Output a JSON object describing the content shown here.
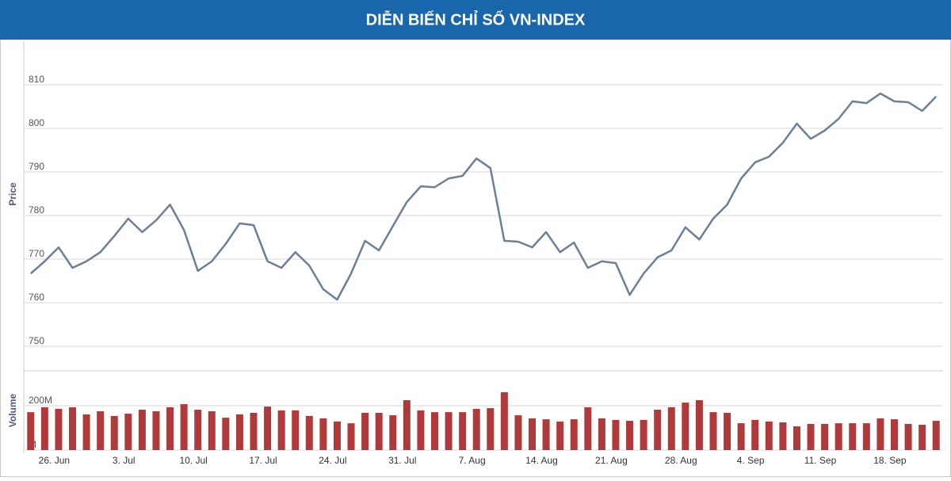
{
  "chart_data": [
    {
      "type": "line",
      "title": "DIỄN BIẾN CHỈ SỐ VN-INDEX",
      "ylabel": "Price",
      "color": "#6b7f99",
      "grid": true,
      "ylim": [
        750,
        820
      ],
      "yticks": [
        750,
        760,
        770,
        780,
        790,
        800,
        810
      ],
      "values": [
        766.7,
        769.5,
        772.7,
        768,
        769.5,
        771.6,
        775.3,
        779.3,
        776.2,
        778.9,
        782.5,
        776.7,
        767.3,
        769.5,
        773.5,
        778.2,
        777.8,
        769.5,
        768,
        771.6,
        768.5,
        763.1,
        760.7,
        766.7,
        774.2,
        772,
        777.6,
        783.1,
        786.7,
        786.5,
        788.5,
        789.1,
        793.1,
        790.9,
        774.2,
        774,
        772.7,
        776.2,
        771.6,
        773.8,
        768,
        769.5,
        769.1,
        761.8,
        766.7,
        770.4,
        772,
        777.3,
        774.5,
        779.3,
        782.5,
        788.5,
        792.2,
        793.5,
        796.7,
        801.1,
        797.6,
        799.5,
        802.2,
        806.2,
        805.8,
        808,
        806.2,
        806,
        804,
        807.3
      ]
    },
    {
      "type": "bar",
      "ylabel": "Volume",
      "color": "#b03a3a",
      "grid": true,
      "ylim": [
        0,
        350
      ],
      "yticks": [
        {
          "value": 0,
          "label": "M"
        },
        {
          "value": 200,
          "label": "200M"
        }
      ],
      "categories": [
        null,
        "26. Jun",
        null,
        null,
        null,
        null,
        "3. Jul",
        null,
        null,
        null,
        null,
        "10. Jul",
        null,
        null,
        null,
        null,
        "17. Jul",
        null,
        null,
        null,
        null,
        "24. Jul",
        null,
        null,
        null,
        null,
        "31. Jul",
        null,
        null,
        null,
        null,
        "7. Aug",
        null,
        null,
        null,
        null,
        "14. Aug",
        null,
        null,
        null,
        null,
        "21. Aug",
        null,
        null,
        null,
        null,
        "28. Aug",
        null,
        null,
        null,
        null,
        "4. Sep",
        null,
        null,
        null,
        null,
        "11. Sep",
        null,
        null,
        null,
        null,
        "18. Sep",
        null,
        null,
        null,
        null
      ],
      "values": [
        171,
        193,
        186,
        193,
        161,
        175,
        154,
        164,
        182,
        175,
        193,
        207,
        182,
        175,
        146,
        161,
        168,
        196,
        179,
        179,
        154,
        143,
        129,
        121,
        168,
        168,
        157,
        225,
        179,
        171,
        171,
        171,
        186,
        189,
        261,
        157,
        143,
        139,
        129,
        139,
        193,
        143,
        136,
        132,
        136,
        182,
        193,
        214,
        225,
        171,
        168,
        121,
        136,
        129,
        125,
        107,
        118,
        118,
        121,
        121,
        121,
        143,
        139,
        118,
        114,
        132
      ]
    }
  ]
}
